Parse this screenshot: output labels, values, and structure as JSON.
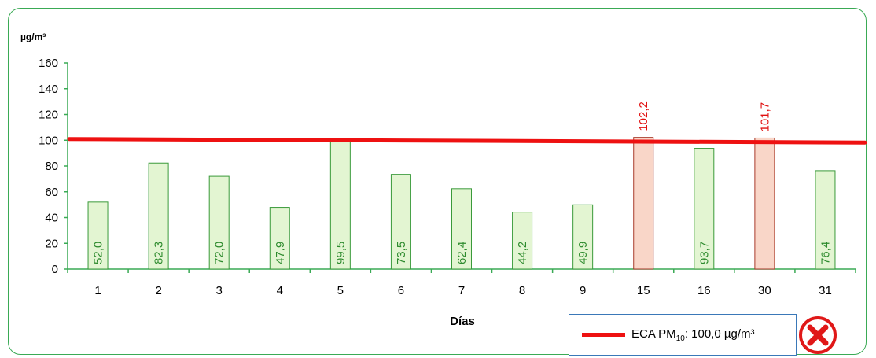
{
  "chart_data": {
    "type": "bar",
    "ylabel": "µg/m³",
    "xlabel": "Días",
    "ylim": [
      0,
      160
    ],
    "yticks": [
      0,
      20,
      40,
      60,
      80,
      100,
      120,
      140,
      160
    ],
    "categories": [
      "1",
      "2",
      "3",
      "4",
      "5",
      "6",
      "7",
      "8",
      "9",
      "15",
      "16",
      "30",
      "31"
    ],
    "values": [
      52.0,
      82.3,
      72.0,
      47.9,
      99.5,
      73.5,
      62.4,
      44.2,
      49.9,
      102.2,
      93.7,
      101.7,
      76.4
    ],
    "value_labels": [
      "52,0",
      "82,3",
      "72,0",
      "47,9",
      "99,5",
      "73,5",
      "62,4",
      "44,2",
      "49,9",
      "102,2",
      "93,7",
      "101,7",
      "76,4"
    ],
    "threshold": 100.0,
    "colors": {
      "ok_fill": "#e3f5d2",
      "ok_stroke": "#3a9a3a",
      "ok_text": "#2e8b2e",
      "exceed_fill": "#f9d6c8",
      "exceed_stroke": "#a83a2a",
      "exceed_text": "#e11111",
      "threshold": "#ee1111",
      "axis": "#3aaa55"
    }
  },
  "legend": {
    "prefix": "ECA PM",
    "subscript": "10",
    "suffix": ":  100,0  µg/m³"
  },
  "status_icon": "red-x-icon"
}
